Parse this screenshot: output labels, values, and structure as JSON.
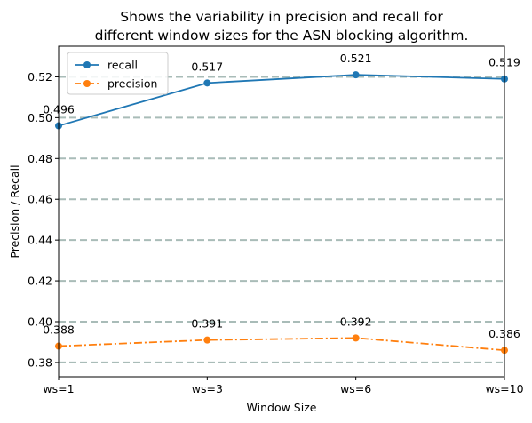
{
  "chart_data": {
    "type": "line",
    "title_lines": [
      "Shows the variability in precision and recall for",
      "different window sizes for the ASN blocking algorithm."
    ],
    "xlabel": "Window Size",
    "ylabel": "Precision / Recall",
    "categories": [
      "ws=1",
      "ws=3",
      "ws=6",
      "ws=10"
    ],
    "ylim": [
      0.373,
      0.535
    ],
    "yticks": [
      0.38,
      0.4,
      0.42,
      0.44,
      0.46,
      0.48,
      0.5,
      0.52
    ],
    "ytick_labels": [
      "0.38",
      "0.40",
      "0.42",
      "0.44",
      "0.46",
      "0.48",
      "0.50",
      "0.52"
    ],
    "grid": "horizontal dashed",
    "legend_position": "top-left",
    "series": [
      {
        "name": "recall",
        "values": [
          0.496,
          0.517,
          0.521,
          0.519
        ],
        "labels": [
          "0.496",
          "0.517",
          "0.521",
          "0.519"
        ],
        "color": "#1f77b4",
        "linestyle": "solid"
      },
      {
        "name": "precision",
        "values": [
          0.388,
          0.391,
          0.392,
          0.386
        ],
        "labels": [
          "0.388",
          "0.391",
          "0.392",
          "0.386"
        ],
        "color": "#ff7f0e",
        "linestyle": "dashdot"
      }
    ],
    "grid_color": "#a9bcb8"
  }
}
